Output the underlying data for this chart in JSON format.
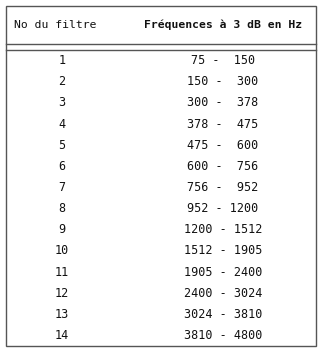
{
  "title_col1": "No du filtre",
  "title_col2": "Fréquences à 3 dB en Hz",
  "rows": [
    [
      "1",
      "75 -  150"
    ],
    [
      "2",
      "150 -  300"
    ],
    [
      "3",
      "300 -  378"
    ],
    [
      "4",
      "378 -  475"
    ],
    [
      "5",
      "475 -  600"
    ],
    [
      "6",
      "600 -  756"
    ],
    [
      "7",
      "756 -  952"
    ],
    [
      "8",
      "952 - 1200"
    ],
    [
      "9",
      "1200 - 1512"
    ],
    [
      "10",
      "1512 - 1905"
    ],
    [
      "11",
      "1905 - 2400"
    ],
    [
      "12",
      "2400 - 3024"
    ],
    [
      "13",
      "3024 - 3810"
    ],
    [
      "14",
      "3810 - 4800"
    ]
  ],
  "bg_color": "#ffffff",
  "border_color": "#555555",
  "text_color": "#111111",
  "header_fontsize": 8.2,
  "body_fontsize": 8.5,
  "figsize": [
    3.22,
    3.52
  ],
  "dpi": 100
}
